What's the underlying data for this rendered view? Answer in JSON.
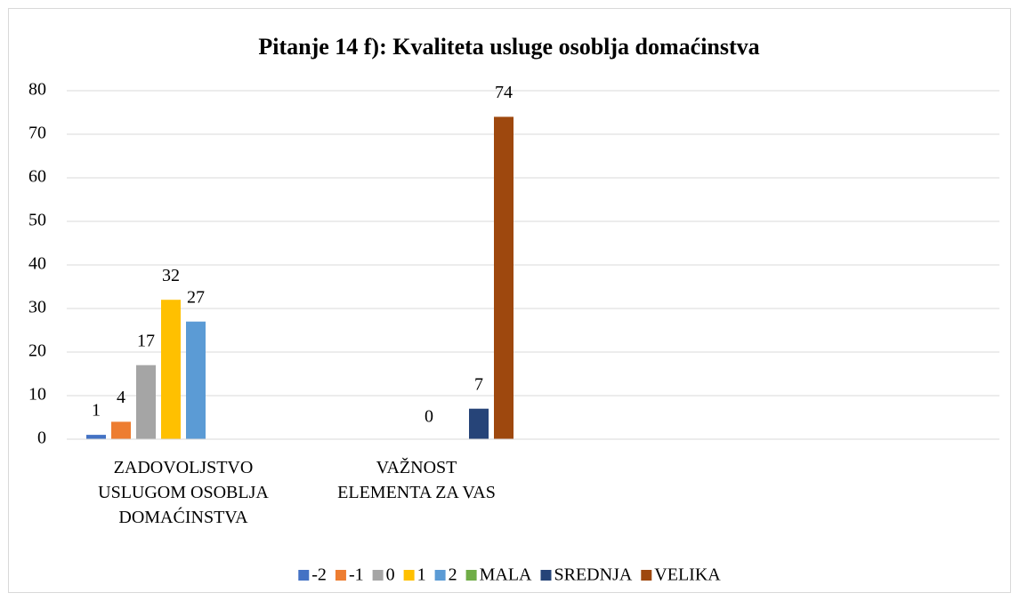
{
  "chart_data": {
    "type": "bar",
    "title": "Pitanje 14 f): Kvaliteta usluge osoblja domaćinstva",
    "categories": [
      "ZADOVOLJSTVO\nUSLUGOM OSOBLJA\nDOMAĆINSTVA",
      "VAŽNOST\nELEMENTA ZA VAS",
      null,
      null
    ],
    "series": [
      {
        "name": "-2",
        "color": "#4472c4",
        "values": [
          1,
          null,
          null,
          null
        ]
      },
      {
        "name": "-1",
        "color": "#ed7d31",
        "values": [
          4,
          null,
          null,
          null
        ]
      },
      {
        "name": "0",
        "color": "#a5a5a5",
        "values": [
          17,
          null,
          null,
          null
        ]
      },
      {
        "name": "1",
        "color": "#ffc000",
        "values": [
          32,
          null,
          null,
          null
        ]
      },
      {
        "name": "2",
        "color": "#5b9bd5",
        "values": [
          27,
          null,
          null,
          null
        ]
      },
      {
        "name": "MALA",
        "color": "#70ad47",
        "values": [
          null,
          0,
          null,
          null
        ]
      },
      {
        "name": "SREDNJA",
        "color": "#264478",
        "values": [
          null,
          7,
          null,
          null
        ]
      },
      {
        "name": "VELIKA",
        "color": "#9e480e",
        "values": [
          null,
          74,
          null,
          null
        ]
      }
    ],
    "ylim": [
      0,
      80
    ],
    "yticks": [
      0,
      10,
      20,
      30,
      40,
      50,
      60,
      70,
      80
    ],
    "grid": true,
    "legend": "bottom"
  }
}
